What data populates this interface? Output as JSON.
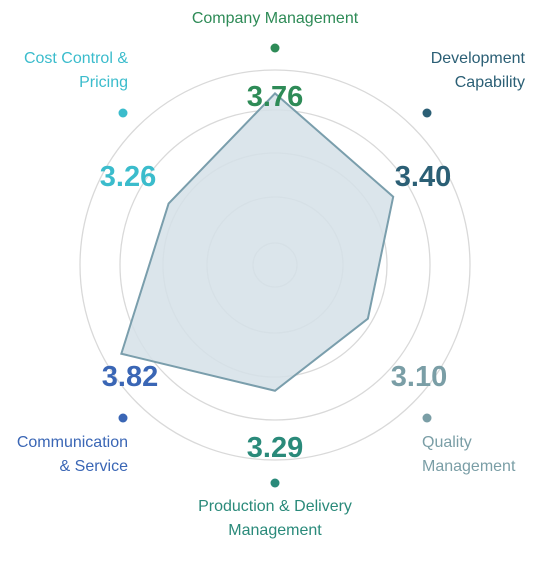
{
  "chart_data": {
    "type": "radar",
    "title": "",
    "axes": [
      {
        "name": "Company Management",
        "lines": [
          "Company Management"
        ],
        "value": 3.76,
        "display": "3.76",
        "color": "#2e8b57"
      },
      {
        "name": "Development Capability",
        "lines": [
          "Development",
          "Capability"
        ],
        "value": 3.4,
        "display": "3.40",
        "color": "#2b5f75"
      },
      {
        "name": "Quality Management",
        "lines": [
          "Quality",
          "Management"
        ],
        "value": 3.1,
        "display": "3.10",
        "color": "#7a9ea6"
      },
      {
        "name": "Production & Delivery Management",
        "lines": [
          "Production & Delivery",
          "Management"
        ],
        "value": 3.29,
        "display": "3.29",
        "color": "#2a8a7a"
      },
      {
        "name": "Communication & Service",
        "lines": [
          "Communication",
          "& Service"
        ],
        "value": 3.82,
        "display": "3.82",
        "color": "#3a66b5"
      },
      {
        "name": "Cost Control & Pricing",
        "lines": [
          "Cost Control &",
          "Pricing"
        ],
        "value": 3.26,
        "display": "3.26",
        "color": "#3bbccc"
      }
    ],
    "rlim": [
      2,
      4
    ],
    "grid_rings": 5,
    "fill_color": "#d5e1e7",
    "stroke_color": "#7a9eac",
    "grid_color": "#d9d9d9"
  }
}
